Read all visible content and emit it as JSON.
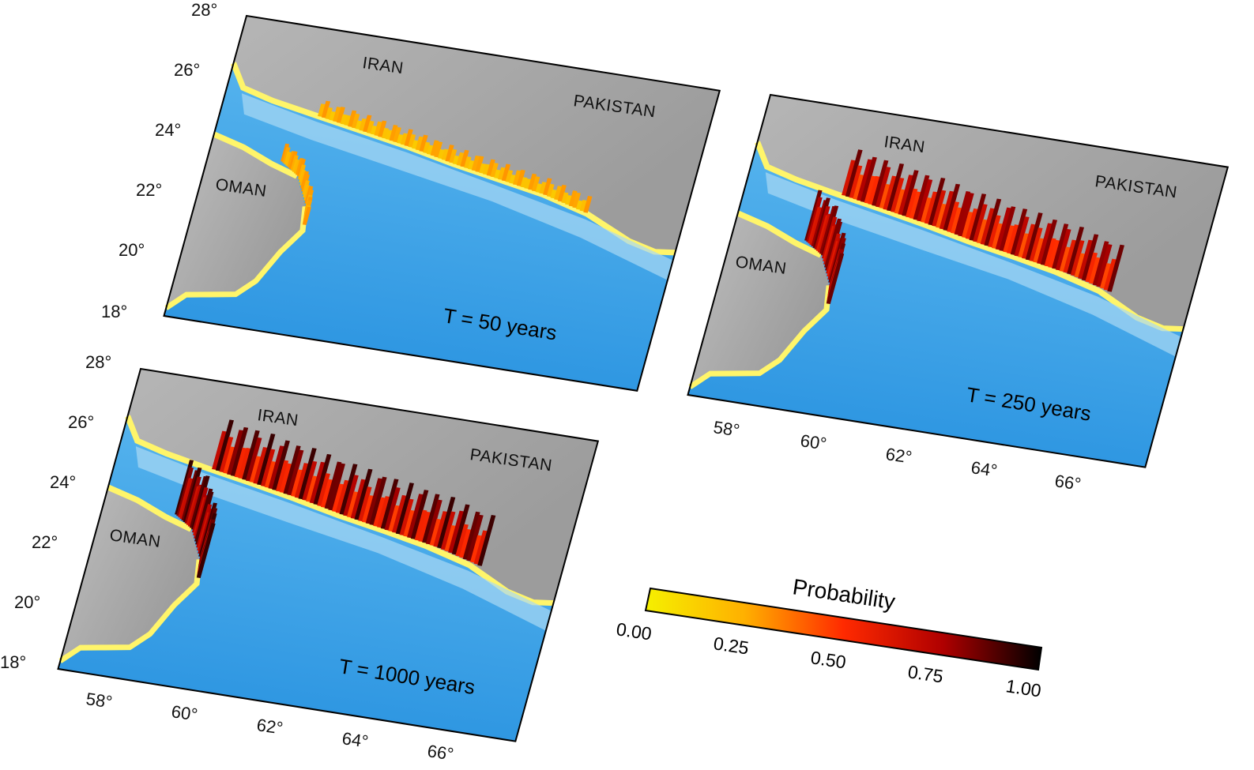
{
  "maps": [
    {
      "id": "t50",
      "period_label": "T = 50 years",
      "countries": [
        "IRAN",
        "PAKISTAN",
        "OMAN"
      ],
      "lat_labels": [
        "28°",
        "26°",
        "24°",
        "22°",
        "20°",
        "18°"
      ],
      "lon_labels": [],
      "bar_level": 0.3
    },
    {
      "id": "t250",
      "period_label": "T = 250 years",
      "countries": [
        "IRAN",
        "PAKISTAN",
        "OMAN"
      ],
      "lat_labels": [],
      "lon_labels": [
        "58°",
        "60°",
        "62°",
        "64°",
        "66°"
      ],
      "bar_level": 0.85
    },
    {
      "id": "t1000",
      "period_label": "T = 1000 years",
      "countries": [
        "IRAN",
        "PAKISTAN",
        "OMAN"
      ],
      "lat_labels": [
        "28°",
        "26°",
        "24°",
        "22°",
        "20°",
        "18°"
      ],
      "lon_labels": [
        "58°",
        "60°",
        "62°",
        "64°",
        "66°"
      ],
      "bar_level": 0.92
    }
  ],
  "colorbar": {
    "title": "Probability",
    "ticks": [
      "0.00",
      "0.25",
      "0.50",
      "0.75",
      "1.00"
    ],
    "colors": [
      "#f5f000",
      "#ffb000",
      "#ff2a00",
      "#b00000",
      "#000000"
    ]
  },
  "colors": {
    "sea": "#3aa0e6",
    "shelf": "#bfe4f6",
    "land": "#a9a9a9",
    "coast": "#fff56a"
  }
}
